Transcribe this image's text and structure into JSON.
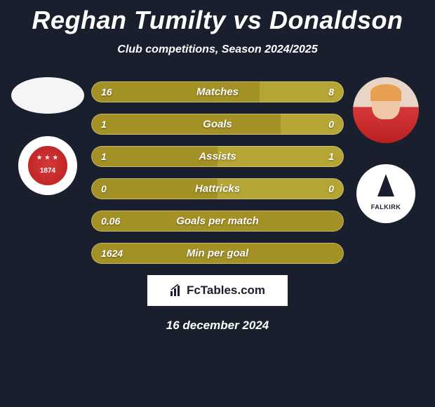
{
  "title": "Reghan Tumilty vs Donaldson",
  "subtitle": "Club competitions, Season 2024/2025",
  "date": "16 december 2024",
  "brand": "FcTables.com",
  "left_player": {
    "club_year": "1874"
  },
  "colors": {
    "bar_left": "#a39126",
    "bar_right": "#b5a534",
    "bg": "#1a1f2e"
  },
  "bars": [
    {
      "label": "Matches",
      "left_val": "16",
      "right_val": "8",
      "left_pct": 66.7,
      "right_pct": 33.3
    },
    {
      "label": "Goals",
      "left_val": "1",
      "right_val": "0",
      "left_pct": 75,
      "right_pct": 25
    },
    {
      "label": "Assists",
      "left_val": "1",
      "right_val": "1",
      "left_pct": 50,
      "right_pct": 50
    },
    {
      "label": "Hattricks",
      "left_val": "0",
      "right_val": "0",
      "left_pct": 50,
      "right_pct": 50
    },
    {
      "label": "Goals per match",
      "left_val": "0.06",
      "right_val": "",
      "left_pct": 100,
      "right_pct": 0
    },
    {
      "label": "Min per goal",
      "left_val": "1624",
      "right_val": "",
      "left_pct": 100,
      "right_pct": 0
    }
  ]
}
